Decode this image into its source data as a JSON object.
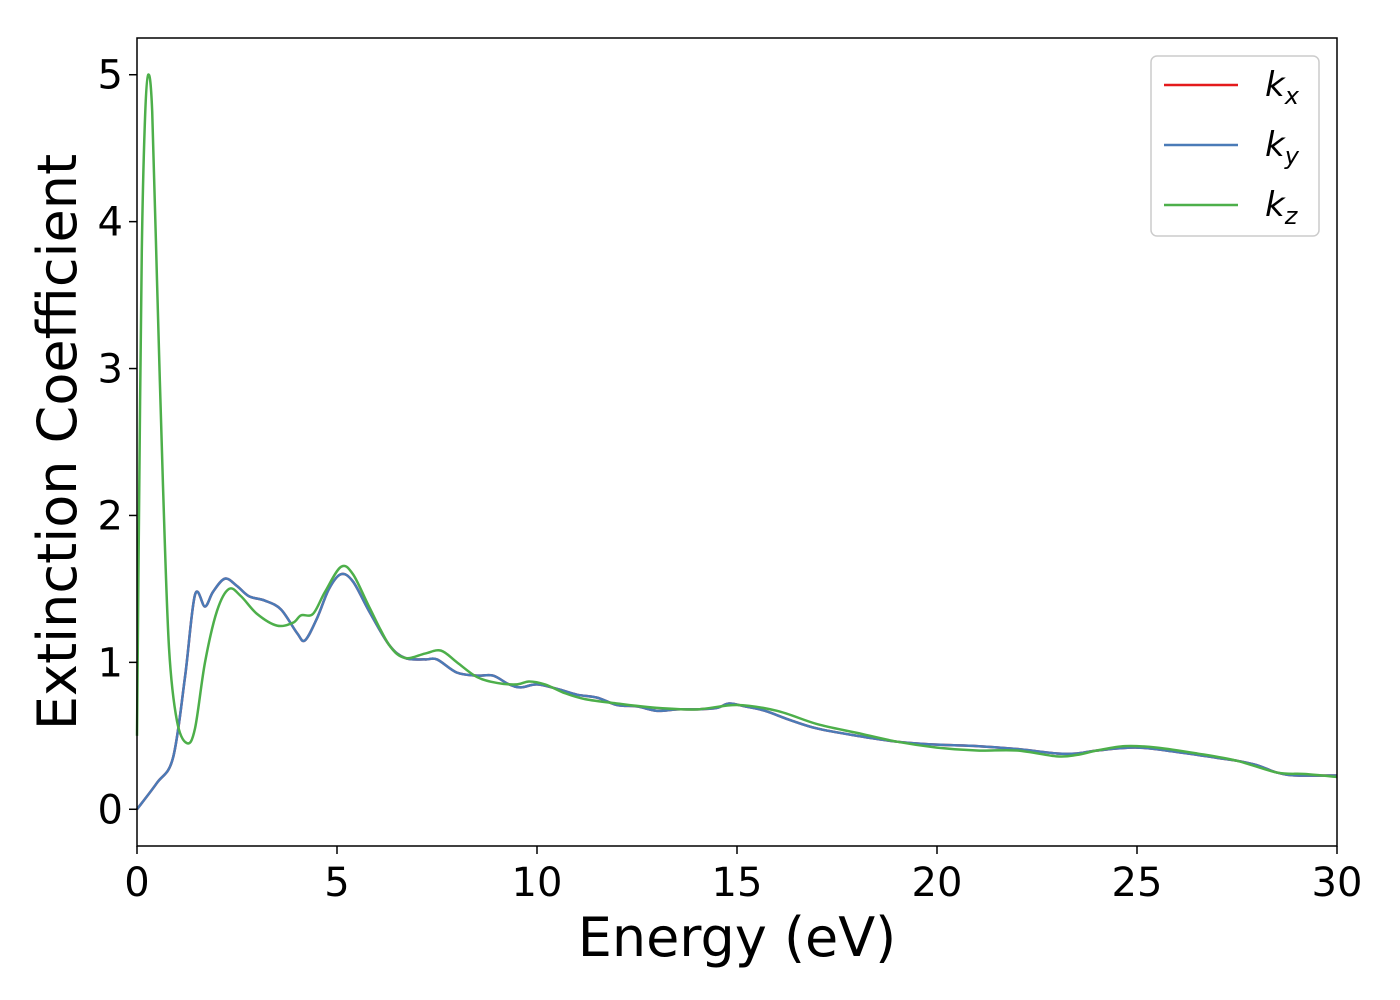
{
  "chart_data": {
    "type": "line",
    "title": "",
    "xlabel": "Energy (eV)",
    "ylabel": "Extinction Coefficient",
    "xlim": [
      0,
      30
    ],
    "ylim": [
      -0.25,
      5.25
    ],
    "xticks": [
      "0",
      "5",
      "10",
      "15",
      "20",
      "25",
      "30"
    ],
    "yticks": [
      "0",
      "1",
      "2",
      "3",
      "4",
      "5"
    ],
    "grid": false,
    "legend": "top-right",
    "series": [
      {
        "name": "k",
        "subscript": "x",
        "color": "#e41a1c",
        "points": [
          [
            0,
            0
          ],
          [
            0.5,
            0.18
          ],
          [
            0.9,
            0.35
          ],
          [
            1.2,
            0.9
          ],
          [
            1.45,
            1.46
          ],
          [
            1.7,
            1.38
          ],
          [
            1.9,
            1.48
          ],
          [
            2.2,
            1.57
          ],
          [
            2.5,
            1.52
          ],
          [
            2.8,
            1.45
          ],
          [
            3.2,
            1.42
          ],
          [
            3.6,
            1.36
          ],
          [
            4.0,
            1.2
          ],
          [
            4.2,
            1.15
          ],
          [
            4.5,
            1.3
          ],
          [
            4.8,
            1.5
          ],
          [
            5.1,
            1.6
          ],
          [
            5.4,
            1.55
          ],
          [
            5.8,
            1.35
          ],
          [
            6.3,
            1.12
          ],
          [
            6.7,
            1.03
          ],
          [
            7.2,
            1.02
          ],
          [
            7.5,
            1.02
          ],
          [
            8.0,
            0.93
          ],
          [
            8.5,
            0.91
          ],
          [
            8.9,
            0.91
          ],
          [
            9.3,
            0.85
          ],
          [
            9.6,
            0.83
          ],
          [
            10.0,
            0.85
          ],
          [
            10.5,
            0.82
          ],
          [
            11.0,
            0.78
          ],
          [
            11.5,
            0.76
          ],
          [
            12.0,
            0.71
          ],
          [
            12.5,
            0.7
          ],
          [
            13.0,
            0.67
          ],
          [
            13.5,
            0.68
          ],
          [
            14.0,
            0.68
          ],
          [
            14.5,
            0.69
          ],
          [
            14.8,
            0.72
          ],
          [
            15.2,
            0.7
          ],
          [
            15.7,
            0.67
          ],
          [
            16.3,
            0.61
          ],
          [
            17.0,
            0.55
          ],
          [
            18.0,
            0.5
          ],
          [
            19.0,
            0.46
          ],
          [
            20.0,
            0.44
          ],
          [
            21.0,
            0.43
          ],
          [
            22.0,
            0.41
          ],
          [
            23.0,
            0.38
          ],
          [
            23.5,
            0.38
          ],
          [
            24.0,
            0.4
          ],
          [
            25.0,
            0.42
          ],
          [
            26.0,
            0.39
          ],
          [
            27.0,
            0.35
          ],
          [
            27.5,
            0.33
          ],
          [
            28.0,
            0.3
          ],
          [
            28.5,
            0.25
          ],
          [
            29.0,
            0.23
          ],
          [
            30.0,
            0.23
          ]
        ]
      },
      {
        "name": "k",
        "subscript": "y",
        "color": "#4a7bb7",
        "points": [
          [
            0,
            0
          ],
          [
            0.5,
            0.18
          ],
          [
            0.9,
            0.35
          ],
          [
            1.2,
            0.9
          ],
          [
            1.45,
            1.46
          ],
          [
            1.7,
            1.38
          ],
          [
            1.9,
            1.48
          ],
          [
            2.2,
            1.57
          ],
          [
            2.5,
            1.52
          ],
          [
            2.8,
            1.45
          ],
          [
            3.2,
            1.42
          ],
          [
            3.6,
            1.36
          ],
          [
            4.0,
            1.2
          ],
          [
            4.2,
            1.15
          ],
          [
            4.5,
            1.3
          ],
          [
            4.8,
            1.5
          ],
          [
            5.1,
            1.6
          ],
          [
            5.4,
            1.55
          ],
          [
            5.8,
            1.35
          ],
          [
            6.3,
            1.12
          ],
          [
            6.7,
            1.03
          ],
          [
            7.2,
            1.02
          ],
          [
            7.5,
            1.02
          ],
          [
            8.0,
            0.93
          ],
          [
            8.5,
            0.91
          ],
          [
            8.9,
            0.91
          ],
          [
            9.3,
            0.85
          ],
          [
            9.6,
            0.83
          ],
          [
            10.0,
            0.85
          ],
          [
            10.5,
            0.82
          ],
          [
            11.0,
            0.78
          ],
          [
            11.5,
            0.76
          ],
          [
            12.0,
            0.71
          ],
          [
            12.5,
            0.7
          ],
          [
            13.0,
            0.67
          ],
          [
            13.5,
            0.68
          ],
          [
            14.0,
            0.68
          ],
          [
            14.5,
            0.69
          ],
          [
            14.8,
            0.72
          ],
          [
            15.2,
            0.7
          ],
          [
            15.7,
            0.67
          ],
          [
            16.3,
            0.61
          ],
          [
            17.0,
            0.55
          ],
          [
            18.0,
            0.5
          ],
          [
            19.0,
            0.46
          ],
          [
            20.0,
            0.44
          ],
          [
            21.0,
            0.43
          ],
          [
            22.0,
            0.41
          ],
          [
            23.0,
            0.38
          ],
          [
            23.5,
            0.38
          ],
          [
            24.0,
            0.4
          ],
          [
            25.0,
            0.42
          ],
          [
            26.0,
            0.39
          ],
          [
            27.0,
            0.35
          ],
          [
            27.5,
            0.33
          ],
          [
            28.0,
            0.3
          ],
          [
            28.5,
            0.25
          ],
          [
            29.0,
            0.23
          ],
          [
            30.0,
            0.23
          ]
        ]
      },
      {
        "name": "k",
        "subscript": "z",
        "color": "#4daf4a",
        "points": [
          [
            0,
            0.5
          ],
          [
            0.05,
            2.0
          ],
          [
            0.12,
            3.8
          ],
          [
            0.2,
            4.7
          ],
          [
            0.28,
            5.0
          ],
          [
            0.38,
            4.75
          ],
          [
            0.5,
            3.6
          ],
          [
            0.65,
            2.2
          ],
          [
            0.8,
            1.1
          ],
          [
            1.0,
            0.6
          ],
          [
            1.25,
            0.45
          ],
          [
            1.45,
            0.55
          ],
          [
            1.7,
            1.0
          ],
          [
            2.0,
            1.35
          ],
          [
            2.3,
            1.5
          ],
          [
            2.6,
            1.45
          ],
          [
            3.0,
            1.33
          ],
          [
            3.5,
            1.25
          ],
          [
            3.9,
            1.27
          ],
          [
            4.1,
            1.32
          ],
          [
            4.4,
            1.33
          ],
          [
            4.7,
            1.48
          ],
          [
            5.1,
            1.65
          ],
          [
            5.4,
            1.6
          ],
          [
            5.8,
            1.38
          ],
          [
            6.3,
            1.12
          ],
          [
            6.7,
            1.03
          ],
          [
            7.2,
            1.06
          ],
          [
            7.6,
            1.08
          ],
          [
            8.0,
            1.0
          ],
          [
            8.5,
            0.9
          ],
          [
            9.0,
            0.86
          ],
          [
            9.5,
            0.85
          ],
          [
            9.8,
            0.87
          ],
          [
            10.2,
            0.85
          ],
          [
            10.7,
            0.79
          ],
          [
            11.2,
            0.75
          ],
          [
            12.0,
            0.72
          ],
          [
            13.0,
            0.69
          ],
          [
            14.0,
            0.68
          ],
          [
            15.0,
            0.71
          ],
          [
            16.0,
            0.67
          ],
          [
            17.0,
            0.58
          ],
          [
            18.0,
            0.52
          ],
          [
            19.0,
            0.46
          ],
          [
            20.0,
            0.42
          ],
          [
            21.0,
            0.4
          ],
          [
            22.0,
            0.4
          ],
          [
            23.0,
            0.36
          ],
          [
            23.5,
            0.37
          ],
          [
            24.0,
            0.4
          ],
          [
            24.7,
            0.43
          ],
          [
            25.5,
            0.42
          ],
          [
            26.5,
            0.38
          ],
          [
            27.5,
            0.33
          ],
          [
            28.5,
            0.25
          ],
          [
            29.2,
            0.24
          ],
          [
            30.0,
            0.22
          ]
        ]
      }
    ]
  }
}
